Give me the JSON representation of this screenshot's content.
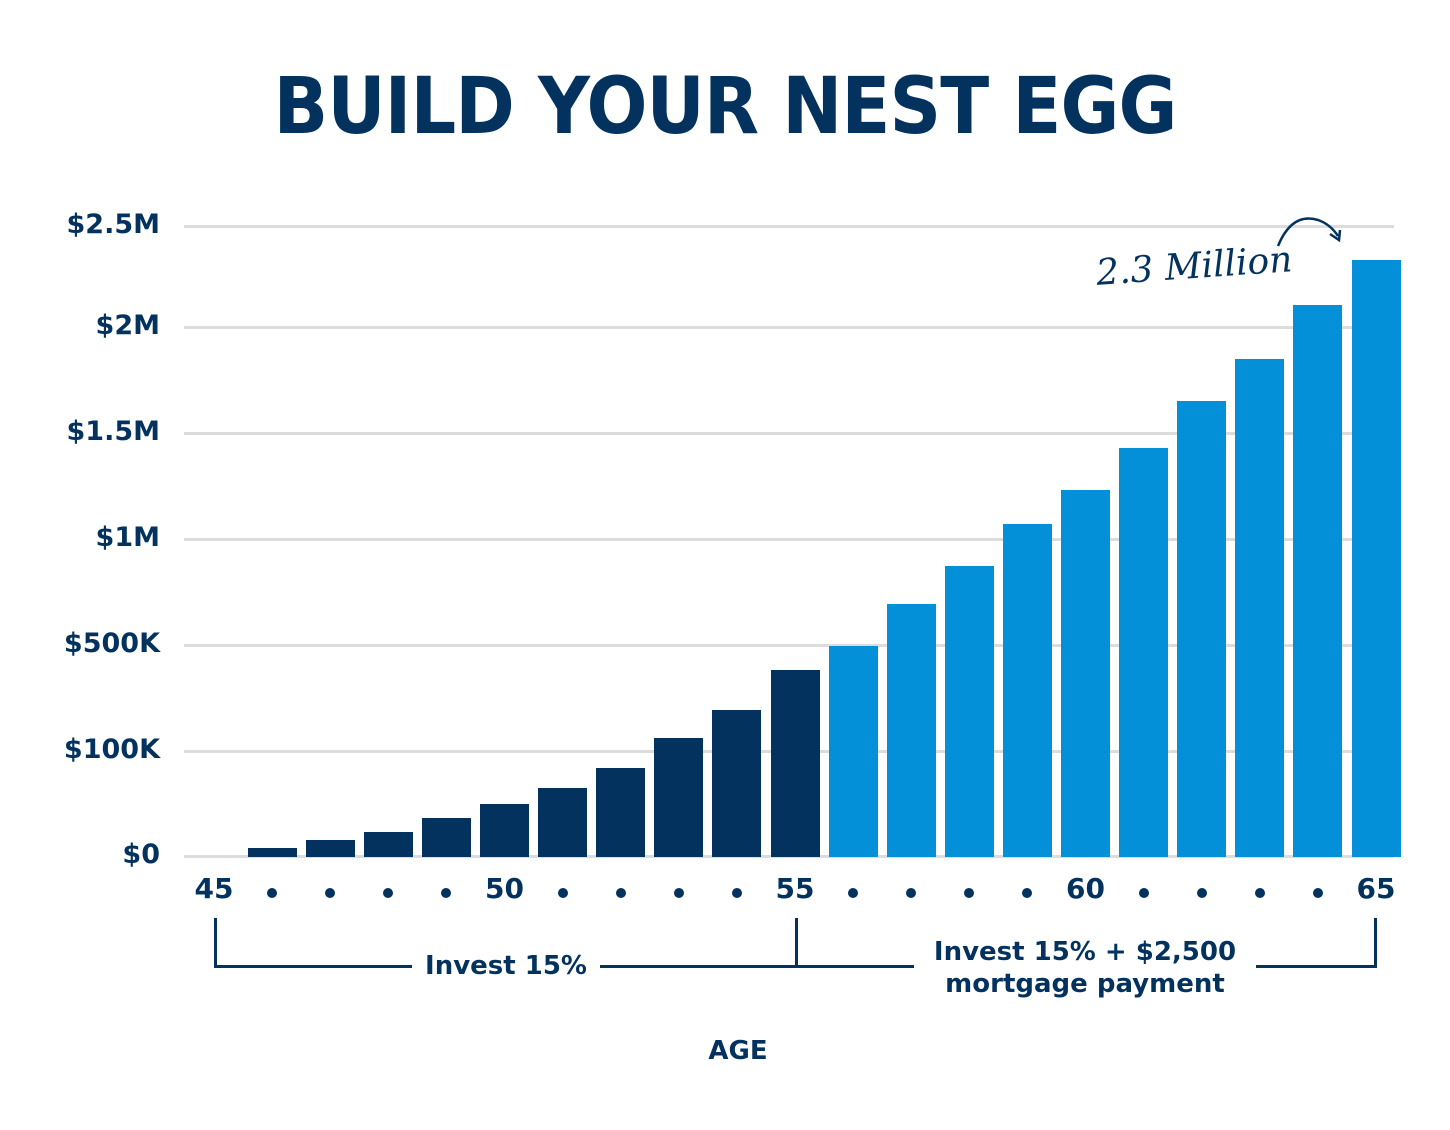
{
  "title": "BUILD YOUR NEST EGG",
  "colors": {
    "phase1": "#03325e",
    "phase2": "#0390d8",
    "grid": "#dcdcdc",
    "text": "#03325e"
  },
  "y_axis": {
    "ticks": [
      "$2.5M",
      "$2M",
      "$1.5M",
      "$1M",
      "$500K",
      "$100K",
      "$0"
    ]
  },
  "x_axis": {
    "title": "AGE",
    "labels": [
      "45",
      "50",
      "55",
      "60",
      "65"
    ]
  },
  "brackets": {
    "phase1": "Invest 15%",
    "phase2_line1": "Invest 15% + $2,500",
    "phase2_line2": "mortgage payment"
  },
  "annotation": "2.3 Million",
  "chart_data": {
    "type": "bar",
    "title": "BUILD YOUR NEST EGG",
    "xlabel": "AGE",
    "ylabel": "",
    "categories": [
      46,
      47,
      48,
      49,
      50,
      51,
      52,
      53,
      54,
      55,
      56,
      57,
      58,
      59,
      60,
      61,
      62,
      63,
      64,
      65
    ],
    "series": [
      {
        "name": "Invest 15%",
        "ages": [
          46,
          47,
          48,
          49,
          50,
          51,
          52,
          53,
          54,
          55
        ],
        "values": [
          8000,
          15000,
          23000,
          36000,
          50000,
          65000,
          84000,
          149000,
          255000,
          406000
        ]
      },
      {
        "name": "Invest 15% + $2,500 mortgage payment",
        "ages": [
          56,
          57,
          58,
          59,
          60,
          61,
          62,
          63,
          64,
          65
        ],
        "values": [
          496000,
          693000,
          873000,
          1070000,
          1230000,
          1430000,
          1650000,
          1850000,
          2110000,
          2330000
        ]
      }
    ],
    "y_ticks": [
      "$0",
      "$100K",
      "$500K",
      "$1M",
      "$1.5M",
      "$2M",
      "$2.5M"
    ],
    "y_scale_note": "non-linear axis: ticks evenly spaced",
    "x_tick_labels": [
      "45",
      "50",
      "55",
      "60",
      "65"
    ],
    "annotations": [
      "2.3 Million"
    ],
    "grid": true,
    "legend": "none (bracket labels below axis)",
    "ylim": [
      0,
      2500000
    ]
  }
}
